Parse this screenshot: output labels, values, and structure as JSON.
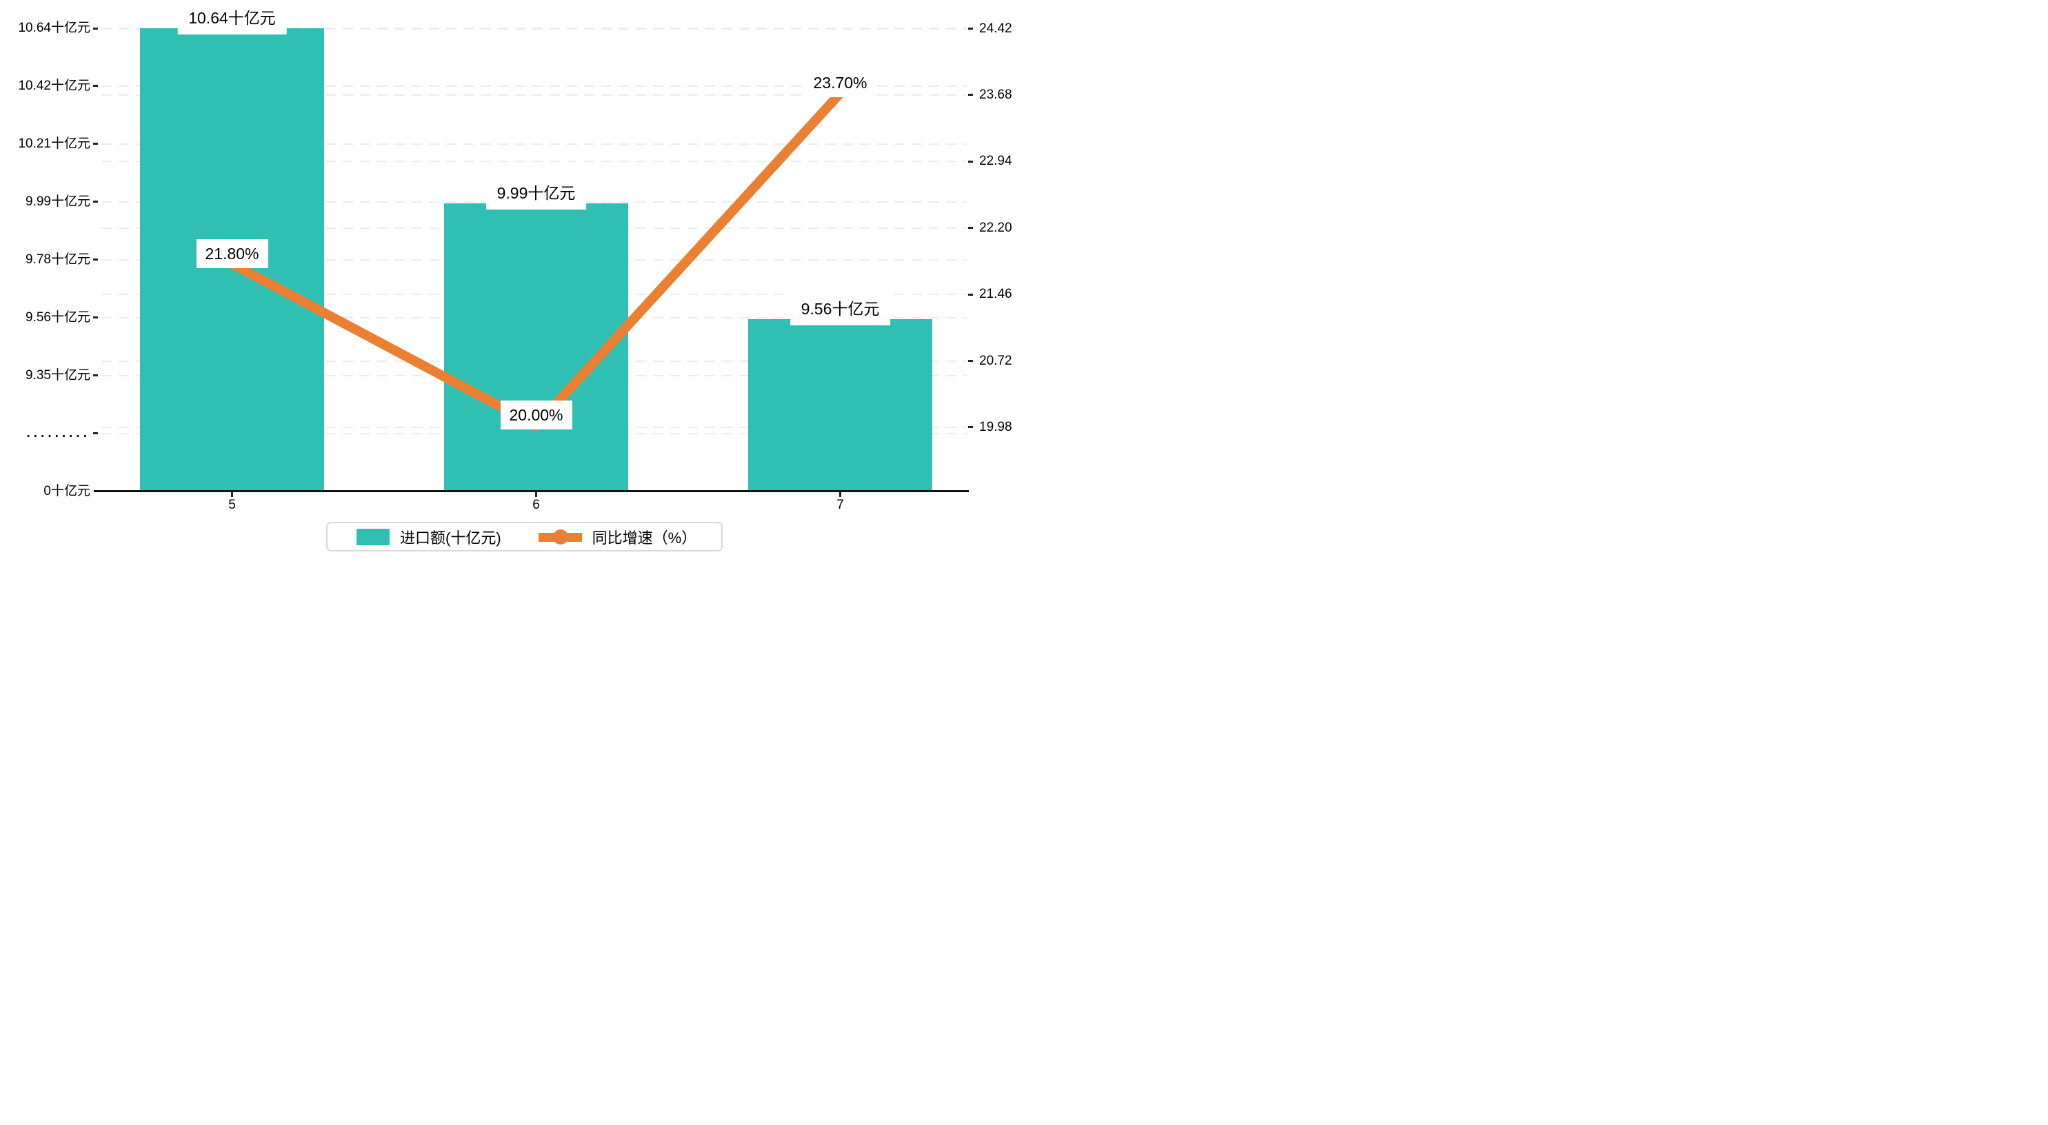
{
  "chart_data": {
    "type": "bar+line",
    "categories": [
      "5",
      "6",
      "7"
    ],
    "series": [
      {
        "name": "进口额(十亿元)",
        "type": "bar",
        "color": "#2fbfb3",
        "values": [
          10.64,
          9.99,
          9.56
        ],
        "data_labels": [
          "10.64十亿元",
          "9.99十亿元",
          "9.56十亿元"
        ]
      },
      {
        "name": "同比增速（%）",
        "type": "line",
        "color": "#eb8033",
        "values": [
          21.8,
          20.0,
          23.7
        ],
        "data_labels": [
          "21.80%",
          "20.00%",
          "23.70%"
        ]
      }
    ],
    "left_axis": {
      "tick_labels": [
        "10.64十亿元",
        "10.42十亿元",
        "10.21十亿元",
        "9.99十亿元",
        "9.78十亿元",
        "9.56十亿元",
        "9.35十亿元",
        ".........",
        "0十亿元"
      ],
      "axis_break_label": ".........",
      "top_value": 10.64,
      "tick_step": 0.215
    },
    "right_axis": {
      "tick_labels": [
        "24.42",
        "23.68",
        "22.94",
        "22.20",
        "21.46",
        "20.72",
        "19.98"
      ],
      "top_value": 24.42,
      "tick_step": 0.74
    },
    "grid": "dashed",
    "legend_position": "bottom"
  },
  "legend": {
    "items": [
      {
        "label": "进口额(十亿元)",
        "marker": "bar-swatch"
      },
      {
        "label": "同比增速（%）",
        "marker": "line-dot"
      }
    ]
  },
  "colors": {
    "bar": "#2fbfb3",
    "line": "#eb8033",
    "grid": "#ececec",
    "axis": "#111111",
    "text": "#000000",
    "legend_border": "#d9d9d9",
    "label_background": "#ffffff"
  }
}
